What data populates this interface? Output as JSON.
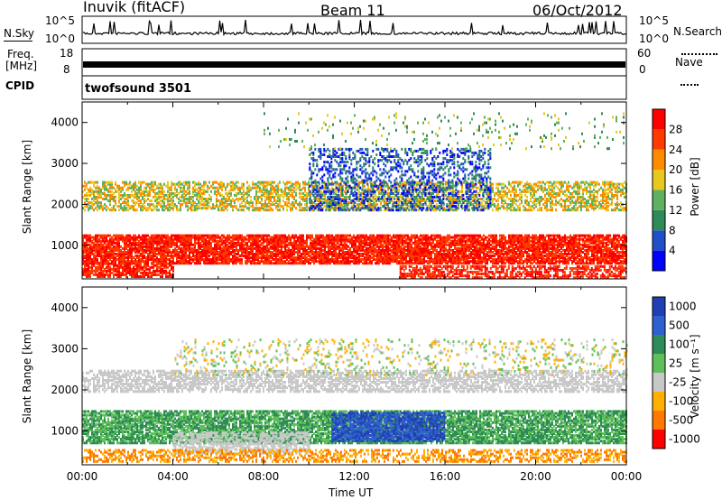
{
  "header": {
    "station": "Inuvik (fitACF)",
    "beam": "Beam 11",
    "date": "06/Oct/2012"
  },
  "left_labels": {
    "nsky": "N.Sky",
    "nsky_top": "10^5",
    "nsky_bottom": "10^0",
    "freq_line1": "Freq.",
    "freq_line2": "[MHz]",
    "freq_top": "18",
    "freq_bottom": "8",
    "cpid": "CPID"
  },
  "right_labels": {
    "nsearch": "N.Search",
    "nsearch_top": "10^5",
    "nsearch_bottom": "10^0",
    "nave": "Nave",
    "nave_top": "60",
    "nave_bottom": "0"
  },
  "cpid_text": "twofsound 3501",
  "chart_data": [
    {
      "type": "heatmap",
      "name": "power",
      "ylabel": "Slant Range [km]",
      "yticks": [
        "1000",
        "2000",
        "3000",
        "4000"
      ],
      "ylim": [
        180,
        4500
      ],
      "xlim_hours": [
        0,
        24
      ],
      "colorbar_label": "Power [dB]",
      "colorbar_ticks": [
        "4",
        "8",
        "12",
        "16",
        "20",
        "24",
        "28"
      ],
      "colors": [
        "#0000ff",
        "#1f4fc8",
        "#2e8b57",
        "#5fb15f",
        "#e8c81e",
        "#ff8c00",
        "#ff3a00",
        "#ff0000"
      ],
      "bands": [
        {
          "center_km": 900,
          "width_km": 700,
          "start_h": 0,
          "end_h": 24,
          "levels": [
            6,
            7
          ],
          "density": 0.85
        },
        {
          "center_km": 2200,
          "width_km": 700,
          "start_h": 0,
          "end_h": 24,
          "levels": [
            3,
            4,
            5
          ],
          "density": 0.55
        },
        {
          "center_km": 400,
          "width_km": 350,
          "start_h": 0,
          "end_h": 4,
          "levels": [
            6,
            7
          ],
          "density": 0.7
        },
        {
          "center_km": 350,
          "width_km": 300,
          "start_h": 14,
          "end_h": 24,
          "levels": [
            7,
            6
          ],
          "density": 0.6
        },
        {
          "center_km": 2600,
          "width_km": 1500,
          "start_h": 10,
          "end_h": 18,
          "levels": [
            1,
            2,
            0
          ],
          "density": 0.35
        },
        {
          "center_km": 3800,
          "width_km": 900,
          "start_h": 8,
          "end_h": 24,
          "levels": [
            2,
            3,
            4
          ],
          "density": 0.06
        }
      ]
    },
    {
      "type": "heatmap",
      "name": "velocity",
      "ylabel": "Slant Range [km]",
      "yticks": [
        "1000",
        "2000",
        "3000",
        "4000"
      ],
      "ylim": [
        180,
        4500
      ],
      "xlim_hours": [
        0,
        24
      ],
      "xticks": [
        "00:00",
        "04:00",
        "08:00",
        "12:00",
        "16:00",
        "20:00",
        "00:00"
      ],
      "xlabel": "Time UT",
      "colorbar_label": "Velocity [m s⁻¹]",
      "colorbar_ticks": [
        "1000",
        "500",
        "100",
        "25",
        "-25",
        "-100",
        "-500",
        "-1000"
      ],
      "colors": [
        "#1f3fb4",
        "#2e60d0",
        "#2e8b57",
        "#5fc05a",
        "#c8c8c8",
        "#ffb000",
        "#ff7800",
        "#ff0000"
      ],
      "bands": [
        {
          "center_km": 1100,
          "width_km": 800,
          "start_h": 0,
          "end_h": 24,
          "levels": [
            2,
            3
          ],
          "density": 0.8
        },
        {
          "center_km": 1100,
          "width_km": 700,
          "start_h": 11,
          "end_h": 16,
          "levels": [
            0,
            1
          ],
          "density": 0.8
        },
        {
          "center_km": 2200,
          "width_km": 500,
          "start_h": 0,
          "end_h": 24,
          "levels": [
            4
          ],
          "density": 0.6
        },
        {
          "center_km": 700,
          "width_km": 500,
          "start_h": 4,
          "end_h": 10,
          "levels": [
            4
          ],
          "density": 0.6
        },
        {
          "center_km": 400,
          "width_km": 300,
          "start_h": 0,
          "end_h": 24,
          "levels": [
            5,
            6
          ],
          "density": 0.45
        },
        {
          "center_km": 2800,
          "width_km": 900,
          "start_h": 4,
          "end_h": 24,
          "levels": [
            3,
            5,
            4
          ],
          "density": 0.15
        }
      ]
    }
  ]
}
